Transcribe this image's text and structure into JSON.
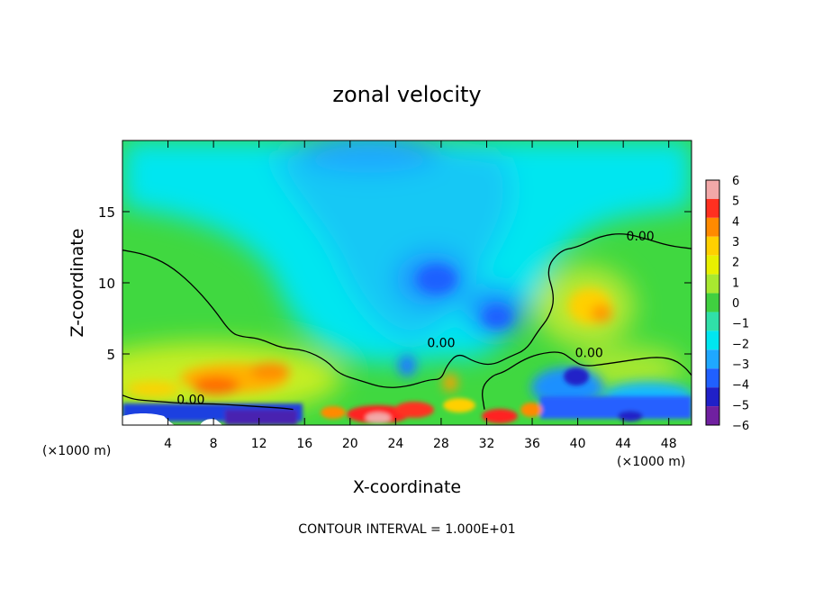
{
  "chart_data": {
    "type": "heatmap",
    "title": "zonal velocity",
    "xlabel": "X-coordinate",
    "ylabel": "Z-coordinate",
    "x_unit_label_left": "(×1000 m)",
    "x_unit_label_right": "(×1000 m)",
    "xlim": [
      0,
      50
    ],
    "ylim": [
      0,
      20
    ],
    "x_ticks": [
      4,
      8,
      12,
      16,
      20,
      24,
      28,
      32,
      36,
      40,
      44,
      48
    ],
    "y_ticks": [
      5,
      10,
      15
    ],
    "colorbar": {
      "min": -6,
      "max": 6,
      "ticks": [
        6,
        5,
        4,
        3,
        2,
        1,
        0,
        -1,
        -2,
        -3,
        -4,
        -5,
        -6
      ],
      "colors": [
        "#f2a8a8",
        "#ff3020",
        "#ff8a00",
        "#ffd000",
        "#e8f000",
        "#a8e830",
        "#40d040",
        "#30e0a8",
        "#00e6f0",
        "#1fa8ff",
        "#2060ff",
        "#2020c8",
        "#7020a0"
      ]
    },
    "contour_label": "0.00",
    "contour_interval_text": "CONTOUR INTERVAL = 1.000E+01",
    "contour_lines": [
      {
        "name": "upper-left",
        "points": [
          [
            0,
            12.3
          ],
          [
            2,
            12
          ],
          [
            4,
            11.3
          ],
          [
            6,
            10
          ],
          [
            8,
            8.2
          ],
          [
            9.5,
            6.5
          ],
          [
            10.5,
            6.2
          ],
          [
            12,
            6.1
          ],
          [
            14,
            5.4
          ],
          [
            16,
            5.3
          ],
          [
            18,
            4.5
          ],
          [
            19,
            3.6
          ],
          [
            21,
            3.1
          ],
          [
            23,
            2.6
          ],
          [
            25,
            2.7
          ],
          [
            27,
            3.2
          ],
          [
            28,
            3.2
          ],
          [
            28.5,
            4.2
          ],
          [
            29.5,
            5.1
          ],
          [
            31,
            4.4
          ],
          [
            32.5,
            4.2
          ],
          [
            34,
            4.8
          ],
          [
            35.5,
            5.3
          ],
          [
            36.5,
            6.6
          ],
          [
            37.5,
            7.6
          ],
          [
            38,
            9
          ],
          [
            37.2,
            11
          ],
          [
            38.5,
            12.3
          ],
          [
            40,
            12.5
          ],
          [
            42,
            13.3
          ],
          [
            44,
            13.5
          ],
          [
            46,
            13.1
          ],
          [
            48,
            12.6
          ],
          [
            50,
            12.4
          ]
        ]
      },
      {
        "name": "lower-right",
        "points": [
          [
            31.8,
            1.1
          ],
          [
            31.5,
            2.6
          ],
          [
            32.5,
            3.5
          ],
          [
            33.5,
            3.7
          ],
          [
            35,
            4.5
          ],
          [
            36.5,
            5.0
          ],
          [
            38.5,
            5.2
          ],
          [
            39.5,
            4.6
          ],
          [
            40.5,
            4.1
          ],
          [
            42.5,
            4.3
          ],
          [
            45,
            4.6
          ],
          [
            47,
            4.8
          ],
          [
            48.5,
            4.6
          ],
          [
            49.5,
            4.0
          ],
          [
            50,
            3.5
          ]
        ]
      },
      {
        "name": "near-surface",
        "points": [
          [
            0,
            2.1
          ],
          [
            1,
            1.8
          ],
          [
            2.5,
            1.7
          ],
          [
            4,
            1.6
          ],
          [
            6,
            1.5
          ],
          [
            8,
            1.5
          ],
          [
            10,
            1.4
          ],
          [
            12,
            1.3
          ],
          [
            14,
            1.2
          ],
          [
            15,
            1.1
          ]
        ]
      }
    ],
    "velocity_features": [
      {
        "name": "strong-westerly-low-left",
        "x": 10,
        "z": 2.8,
        "value": 4
      },
      {
        "name": "westerly-right-mid",
        "x": 42,
        "z": 8,
        "value": 3
      },
      {
        "name": "easterly-center",
        "x": 27,
        "z": 10,
        "value": -3
      },
      {
        "name": "easterly-center-low",
        "x": 33,
        "z": 7.5,
        "value": -3.5
      },
      {
        "name": "easterly-top",
        "x": 30,
        "z": 19,
        "value": -2.5
      },
      {
        "name": "surface-jet-right",
        "x": 33,
        "z": 0.8,
        "value": 5
      },
      {
        "name": "surface-jet-center",
        "x": 25,
        "z": 1,
        "value": 5
      },
      {
        "name": "near-surface-easterly-left",
        "x": 5,
        "z": 0.8,
        "value": -5
      },
      {
        "name": "near-surface-easterly-right",
        "x": 40,
        "z": 2,
        "value": -4
      }
    ]
  }
}
